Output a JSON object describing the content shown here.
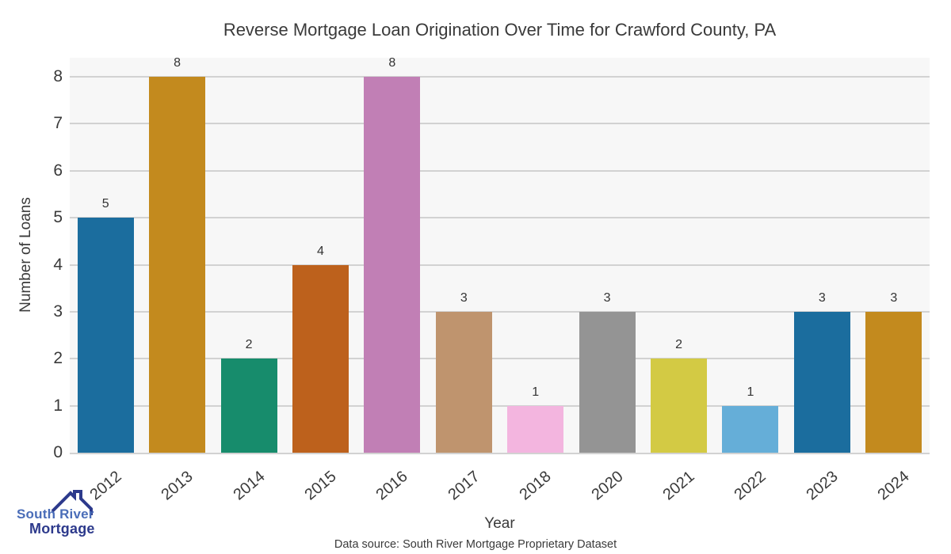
{
  "title": "Reverse Mortgage Loan Origination Over Time for Crawford County, PA",
  "chart_data": {
    "type": "bar",
    "categories": [
      "2012",
      "2013",
      "2014",
      "2015",
      "2016",
      "2017",
      "2018",
      "2020",
      "2021",
      "2022",
      "2023",
      "2024"
    ],
    "values": [
      5,
      8,
      2,
      4,
      8,
      3,
      1,
      3,
      2,
      1,
      3,
      3
    ],
    "bar_colors": [
      "#1b6d9e",
      "#c38a1e",
      "#178c6c",
      "#bd611c",
      "#c17fb5",
      "#bf946e",
      "#f3b5df",
      "#949494",
      "#d3ca44",
      "#65aed8",
      "#1b6d9e",
      "#c38a1e"
    ],
    "title": "Reverse Mortgage Loan Origination Over Time for Crawford County, PA",
    "xlabel": "Year",
    "ylabel": "Number of Loans",
    "ylim": [
      0,
      8
    ],
    "yticks": [
      "0",
      "1",
      "2",
      "3",
      "4",
      "5",
      "6",
      "7",
      "8"
    ],
    "grid": "horizontal",
    "bar_value_labels": true,
    "legend": "none"
  },
  "footer": {
    "data_source": "Data source: South River Mortgage Proprietary Dataset"
  },
  "logo": {
    "line1": "South River",
    "line2": "Mortgage"
  },
  "colors": {
    "plot_bg": "#f7f7f7",
    "gridline": "#d2d2d2",
    "axis_text": "#3a3a3a",
    "logo_blue": "#4a6db8",
    "logo_navy": "#2d3a8c"
  }
}
